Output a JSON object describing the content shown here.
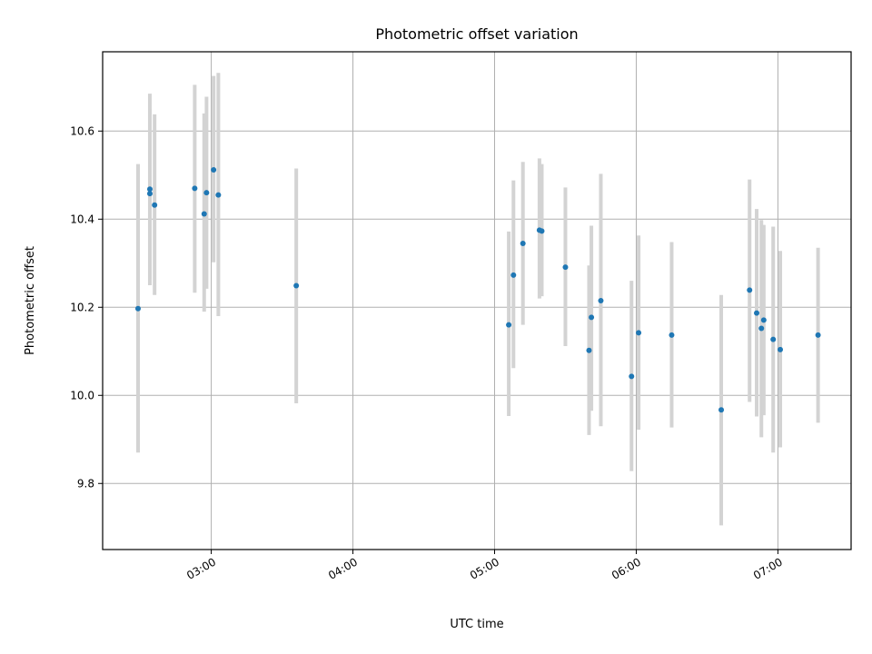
{
  "chart_data": {
    "type": "scatter",
    "title": "Photometric offset variation",
    "xlabel": "UTC time",
    "ylabel": "Photometric offset",
    "xlim": [
      "02:14",
      "07:31"
    ],
    "ylim": [
      9.65,
      10.78
    ],
    "x_ticks": [
      "03:00",
      "04:00",
      "05:00",
      "06:00",
      "07:00"
    ],
    "y_ticks": [
      9.8,
      10.0,
      10.2,
      10.4,
      10.6
    ],
    "y_tick_labels": [
      "9.8",
      "10.0",
      "10.2",
      "10.4",
      "10.6"
    ],
    "grid": true,
    "colors": {
      "point": "#1f77b4",
      "errorbar": "#d3d3d3",
      "grid": "#b0b0b0"
    },
    "series": [
      {
        "points": [
          {
            "x": "02:29",
            "y": 10.197,
            "low": 9.87,
            "high": 10.525
          },
          {
            "x": "02:34",
            "y": 10.458,
            "low": 10.265,
            "high": 10.65
          },
          {
            "x": "02:34",
            "y": 10.468,
            "low": 10.25,
            "high": 10.685
          },
          {
            "x": "02:36",
            "y": 10.432,
            "low": 10.228,
            "high": 10.638
          },
          {
            "x": "02:53",
            "y": 10.47,
            "low": 10.233,
            "high": 10.705
          },
          {
            "x": "02:57",
            "y": 10.412,
            "low": 10.19,
            "high": 10.64
          },
          {
            "x": "02:58",
            "y": 10.46,
            "low": 10.242,
            "high": 10.678
          },
          {
            "x": "03:01",
            "y": 10.512,
            "low": 10.302,
            "high": 10.725
          },
          {
            "x": "03:03",
            "y": 10.455,
            "low": 10.18,
            "high": 10.732
          },
          {
            "x": "03:36",
            "y": 10.249,
            "low": 9.982,
            "high": 10.515
          },
          {
            "x": "05:06",
            "y": 10.16,
            "low": 9.953,
            "high": 10.372
          },
          {
            "x": "05:08",
            "y": 10.273,
            "low": 10.062,
            "high": 10.488
          },
          {
            "x": "05:12",
            "y": 10.345,
            "low": 10.16,
            "high": 10.53
          },
          {
            "x": "05:19",
            "y": 10.375,
            "low": 10.22,
            "high": 10.538
          },
          {
            "x": "05:20",
            "y": 10.373,
            "low": 10.225,
            "high": 10.525
          },
          {
            "x": "05:30",
            "y": 10.291,
            "low": 10.112,
            "high": 10.472
          },
          {
            "x": "05:40",
            "y": 10.102,
            "low": 9.91,
            "high": 10.295
          },
          {
            "x": "05:41",
            "y": 10.177,
            "low": 9.965,
            "high": 10.385
          },
          {
            "x": "05:45",
            "y": 10.215,
            "low": 9.93,
            "high": 10.503
          },
          {
            "x": "05:58",
            "y": 10.043,
            "low": 9.828,
            "high": 10.26
          },
          {
            "x": "06:01",
            "y": 10.142,
            "low": 9.922,
            "high": 10.363
          },
          {
            "x": "06:15",
            "y": 10.137,
            "low": 9.927,
            "high": 10.348
          },
          {
            "x": "06:36",
            "y": 9.967,
            "low": 9.705,
            "high": 10.228
          },
          {
            "x": "06:48",
            "y": 10.239,
            "low": 9.985,
            "high": 10.49
          },
          {
            "x": "06:51",
            "y": 10.187,
            "low": 9.952,
            "high": 10.423
          },
          {
            "x": "06:53",
            "y": 10.152,
            "low": 9.905,
            "high": 10.398
          },
          {
            "x": "06:54",
            "y": 10.171,
            "low": 9.955,
            "high": 10.387
          },
          {
            "x": "06:58",
            "y": 10.127,
            "low": 9.87,
            "high": 10.383
          },
          {
            "x": "07:01",
            "y": 10.104,
            "low": 9.882,
            "high": 10.328
          },
          {
            "x": "07:17",
            "y": 10.137,
            "low": 9.938,
            "high": 10.335
          }
        ]
      }
    ]
  }
}
